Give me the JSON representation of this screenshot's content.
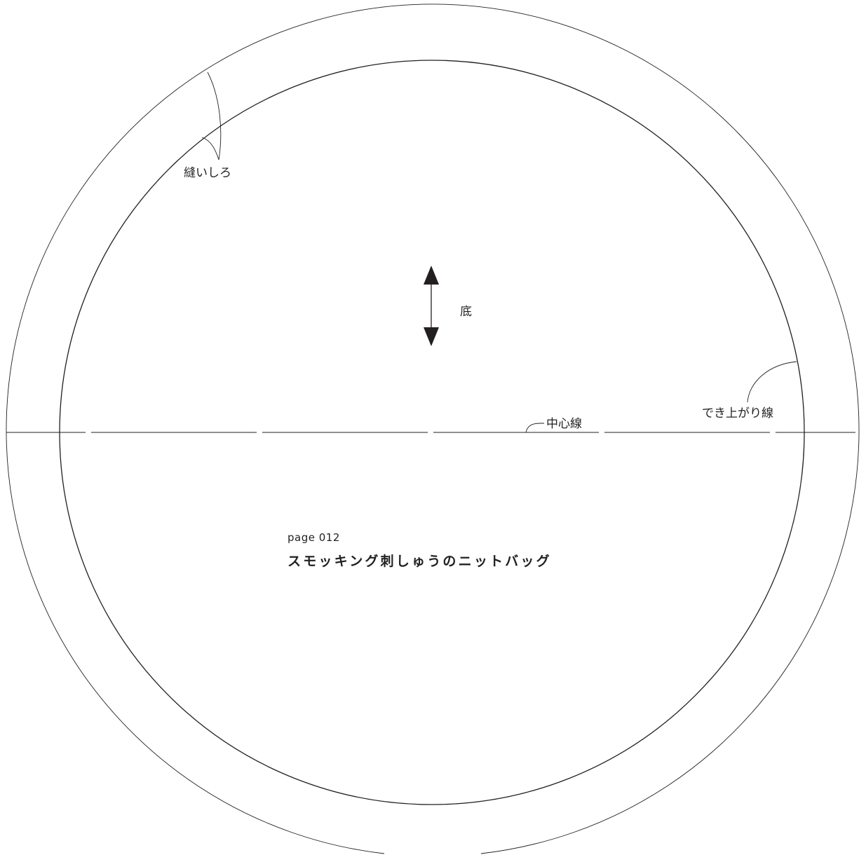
{
  "labels": {
    "seam_allowance": "縫いしろ",
    "finished_line": "でき上がり線",
    "center_line": "中心線",
    "grain_label": "底"
  },
  "source": {
    "page": "page 012",
    "title": "スモッキング刺しゅうのニットバッグ"
  },
  "colors": {
    "line": "#231f20",
    "background": "#ffffff"
  },
  "icons": {
    "grain_arrow": "double-headed-vertical-arrow"
  }
}
